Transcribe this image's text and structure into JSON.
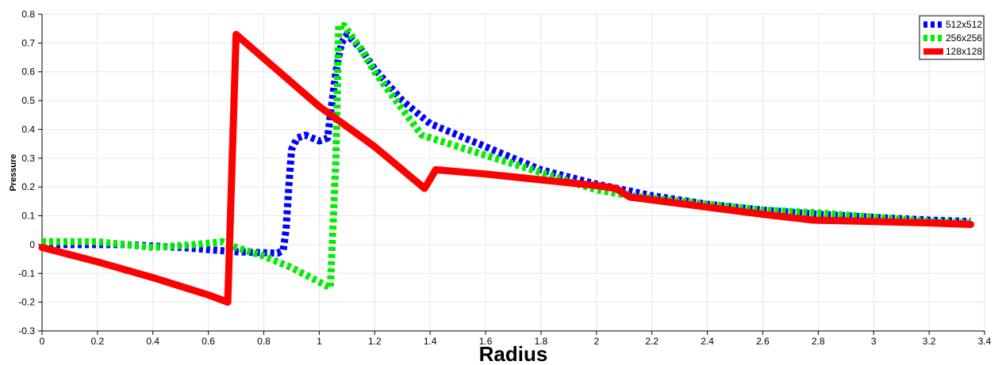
{
  "chart_data": {
    "type": "line",
    "title": "",
    "xlabel": "Radius",
    "ylabel": "Pressure",
    "xlim": [
      0,
      3.4
    ],
    "ylim": [
      -0.3,
      0.8
    ],
    "xticks": [
      "0",
      "0.2",
      "0.4",
      "0.6",
      "0.8",
      "1",
      "1.2",
      "1.4",
      "1.6",
      "1.8",
      "2",
      "2.2",
      "2.4",
      "2.6",
      "2.8",
      "3",
      "3.2",
      "3.4"
    ],
    "yticks": [
      "-0.3",
      "-0.2",
      "-0.1",
      "0",
      "0.1",
      "0.2",
      "0.3",
      "0.4",
      "0.5",
      "0.6",
      "0.7",
      "0.8"
    ],
    "grid": true,
    "legend_position": "top-right",
    "series": [
      {
        "name": "512x512",
        "color": "#0000ff",
        "style": "dashed",
        "points": [
          [
            0,
            0.0
          ],
          [
            0.3,
            0.0
          ],
          [
            0.5,
            -0.01
          ],
          [
            0.7,
            -0.025
          ],
          [
            0.85,
            -0.03
          ],
          [
            0.87,
            -0.02
          ],
          [
            0.88,
            0.05
          ],
          [
            0.89,
            0.2
          ],
          [
            0.9,
            0.33
          ],
          [
            0.92,
            0.37
          ],
          [
            0.95,
            0.38
          ],
          [
            1.0,
            0.36
          ],
          [
            1.03,
            0.37
          ],
          [
            1.04,
            0.45
          ],
          [
            1.06,
            0.6
          ],
          [
            1.08,
            0.7
          ],
          [
            1.1,
            0.73
          ],
          [
            1.15,
            0.68
          ],
          [
            1.2,
            0.61
          ],
          [
            1.3,
            0.5
          ],
          [
            1.4,
            0.42
          ],
          [
            1.6,
            0.34
          ],
          [
            1.8,
            0.26
          ],
          [
            2.0,
            0.21
          ],
          [
            2.2,
            0.17
          ],
          [
            2.4,
            0.14
          ],
          [
            2.6,
            0.12
          ],
          [
            2.8,
            0.105
          ],
          [
            3.0,
            0.095
          ],
          [
            3.2,
            0.085
          ],
          [
            3.35,
            0.08
          ]
        ]
      },
      {
        "name": "256x256",
        "color": "#00ee00",
        "style": "dashed",
        "points": [
          [
            0,
            0.01
          ],
          [
            0.2,
            0.01
          ],
          [
            0.4,
            -0.01
          ],
          [
            0.55,
            0.0
          ],
          [
            0.65,
            0.01
          ],
          [
            0.7,
            -0.01
          ],
          [
            0.8,
            -0.04
          ],
          [
            0.9,
            -0.08
          ],
          [
            1.0,
            -0.13
          ],
          [
            1.04,
            -0.15
          ],
          [
            1.06,
            0.3
          ],
          [
            1.07,
            0.76
          ],
          [
            1.09,
            0.76
          ],
          [
            1.15,
            0.68
          ],
          [
            1.2,
            0.6
          ],
          [
            1.3,
            0.47
          ],
          [
            1.37,
            0.38
          ],
          [
            1.6,
            0.31
          ],
          [
            1.8,
            0.25
          ],
          [
            2.0,
            0.19
          ],
          [
            2.12,
            0.17
          ],
          [
            2.4,
            0.14
          ],
          [
            2.6,
            0.12
          ],
          [
            2.8,
            0.11
          ],
          [
            3.0,
            0.095
          ],
          [
            3.2,
            0.08
          ],
          [
            3.35,
            0.075
          ]
        ]
      },
      {
        "name": "128x128",
        "color": "#ff0000",
        "style": "solid",
        "points": [
          [
            0,
            -0.01
          ],
          [
            0.2,
            -0.06
          ],
          [
            0.4,
            -0.115
          ],
          [
            0.6,
            -0.175
          ],
          [
            0.67,
            -0.2
          ],
          [
            0.7,
            0.73
          ],
          [
            1.0,
            0.48
          ],
          [
            1.2,
            0.34
          ],
          [
            1.38,
            0.195
          ],
          [
            1.42,
            0.26
          ],
          [
            1.6,
            0.245
          ],
          [
            1.8,
            0.225
          ],
          [
            2.0,
            0.205
          ],
          [
            2.07,
            0.195
          ],
          [
            2.12,
            0.165
          ],
          [
            2.4,
            0.13
          ],
          [
            2.6,
            0.105
          ],
          [
            2.78,
            0.085
          ],
          [
            3.0,
            0.08
          ],
          [
            3.2,
            0.075
          ],
          [
            3.35,
            0.07
          ]
        ]
      }
    ]
  }
}
